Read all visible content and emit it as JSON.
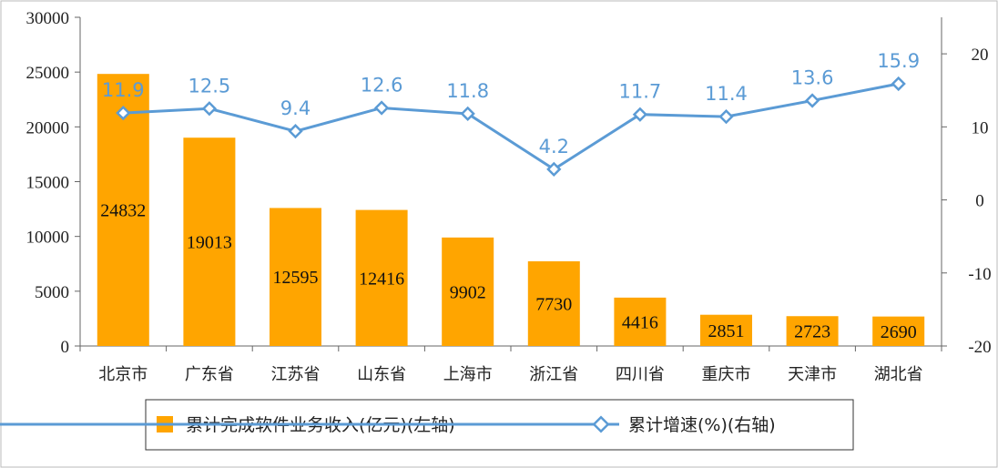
{
  "chart_data": {
    "type": "bar+line",
    "categories": [
      "北京市",
      "广东省",
      "江苏省",
      "山东省",
      "上海市",
      "浙江省",
      "四川省",
      "重庆市",
      "天津市",
      "湖北省"
    ],
    "series": [
      {
        "name": "累计完成软件业务收入(亿元)(左轴)",
        "type": "bar",
        "axis": "left",
        "values": [
          24832,
          19013,
          12595,
          12416,
          9902,
          7730,
          4416,
          2851,
          2723,
          2690
        ],
        "labels": [
          "24832",
          "19013",
          "12595",
          "12416",
          "9902",
          "7730",
          "4416",
          "2851",
          "2723",
          "2690"
        ]
      },
      {
        "name": "累计增速(%)(右轴)",
        "type": "line",
        "axis": "right",
        "values": [
          11.9,
          12.5,
          9.4,
          12.6,
          11.8,
          4.2,
          11.7,
          11.4,
          13.6,
          15.9
        ],
        "labels": [
          "11.9",
          "12.5",
          "9.4",
          "12.6",
          "11.8",
          "4.2",
          "11.7",
          "11.4",
          "13.6",
          "15.9"
        ]
      }
    ],
    "y_left": {
      "min": 0,
      "max": 30000,
      "ticks": [
        "0",
        "5000",
        "10000",
        "15000",
        "20000",
        "25000",
        "30000"
      ]
    },
    "y_right": {
      "min": -20,
      "max": 25,
      "ticks": [
        "-20",
        "-10",
        "0",
        "10",
        "20"
      ]
    },
    "grid": false,
    "legend_position": "bottom",
    "colors": {
      "bar": "#FFA500",
      "line": "#5B9BD5",
      "axis": "#666666"
    }
  }
}
